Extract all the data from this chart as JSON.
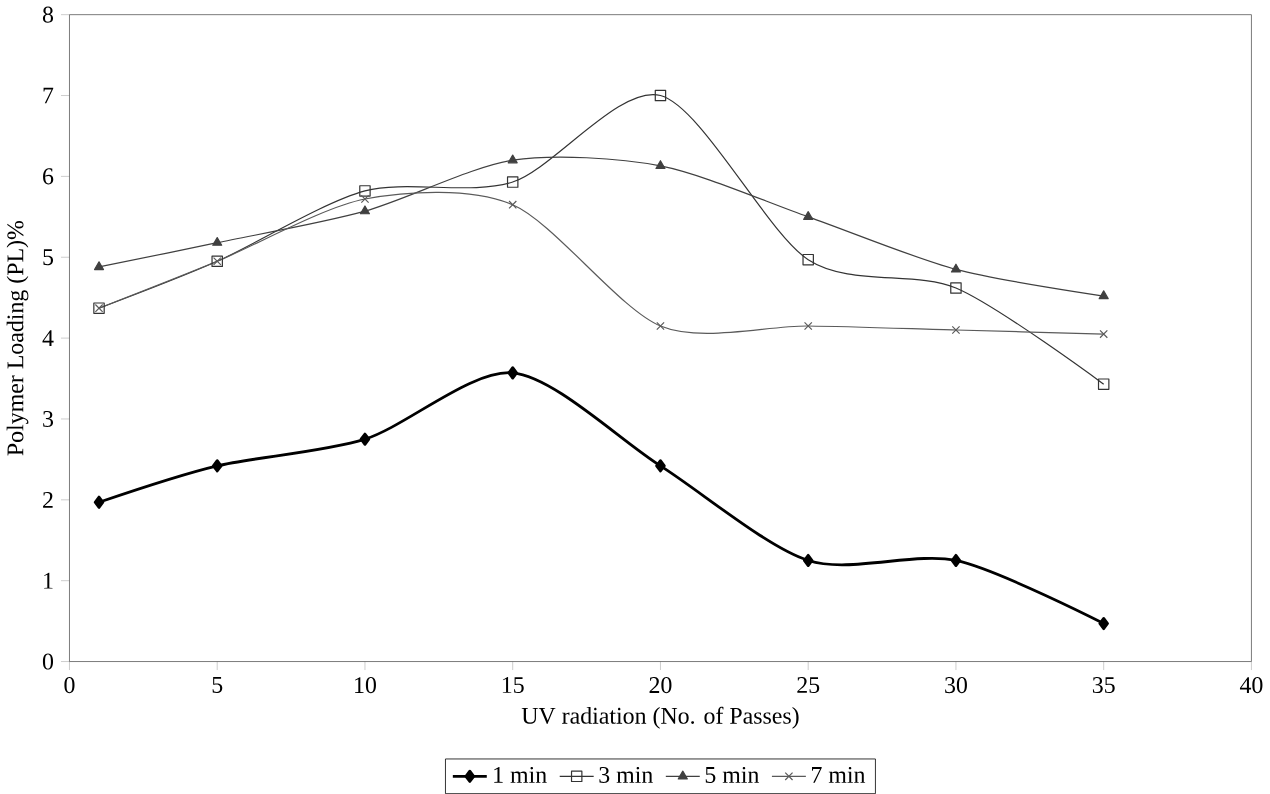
{
  "chart_data": {
    "type": "line",
    "xlabel": "UV radiation (No. of Passes)",
    "ylabel": "Polymer Loading (PL)%",
    "x": [
      1,
      5,
      10,
      15,
      20,
      25,
      30,
      35
    ],
    "series": [
      {
        "name": "1 min",
        "color": "#000000",
        "marker": "diamond",
        "values": [
          1.97,
          2.42,
          2.75,
          3.57,
          2.42,
          1.25,
          1.25,
          0.47
        ]
      },
      {
        "name": "3 min",
        "color": "#333333",
        "marker": "square",
        "values": [
          4.37,
          4.95,
          5.82,
          5.93,
          7.0,
          4.97,
          4.62,
          3.43
        ]
      },
      {
        "name": "5 min",
        "color": "#404040",
        "marker": "triangle",
        "values": [
          4.88,
          5.18,
          5.57,
          6.2,
          6.13,
          5.5,
          4.85,
          4.52
        ]
      },
      {
        "name": "7 min",
        "color": "#5a5a5a",
        "marker": "cross",
        "values": [
          4.37,
          4.95,
          5.72,
          5.65,
          4.15,
          4.15,
          4.1,
          4.05
        ]
      }
    ],
    "xlim": [
      0,
      40
    ],
    "xticks": [
      0,
      5,
      10,
      15,
      20,
      25,
      30,
      35,
      40
    ],
    "ylim": [
      0,
      8
    ],
    "yticks": [
      0,
      1,
      2,
      3,
      4,
      5,
      6,
      7,
      8
    ],
    "grid": false,
    "legend": "bottom"
  }
}
